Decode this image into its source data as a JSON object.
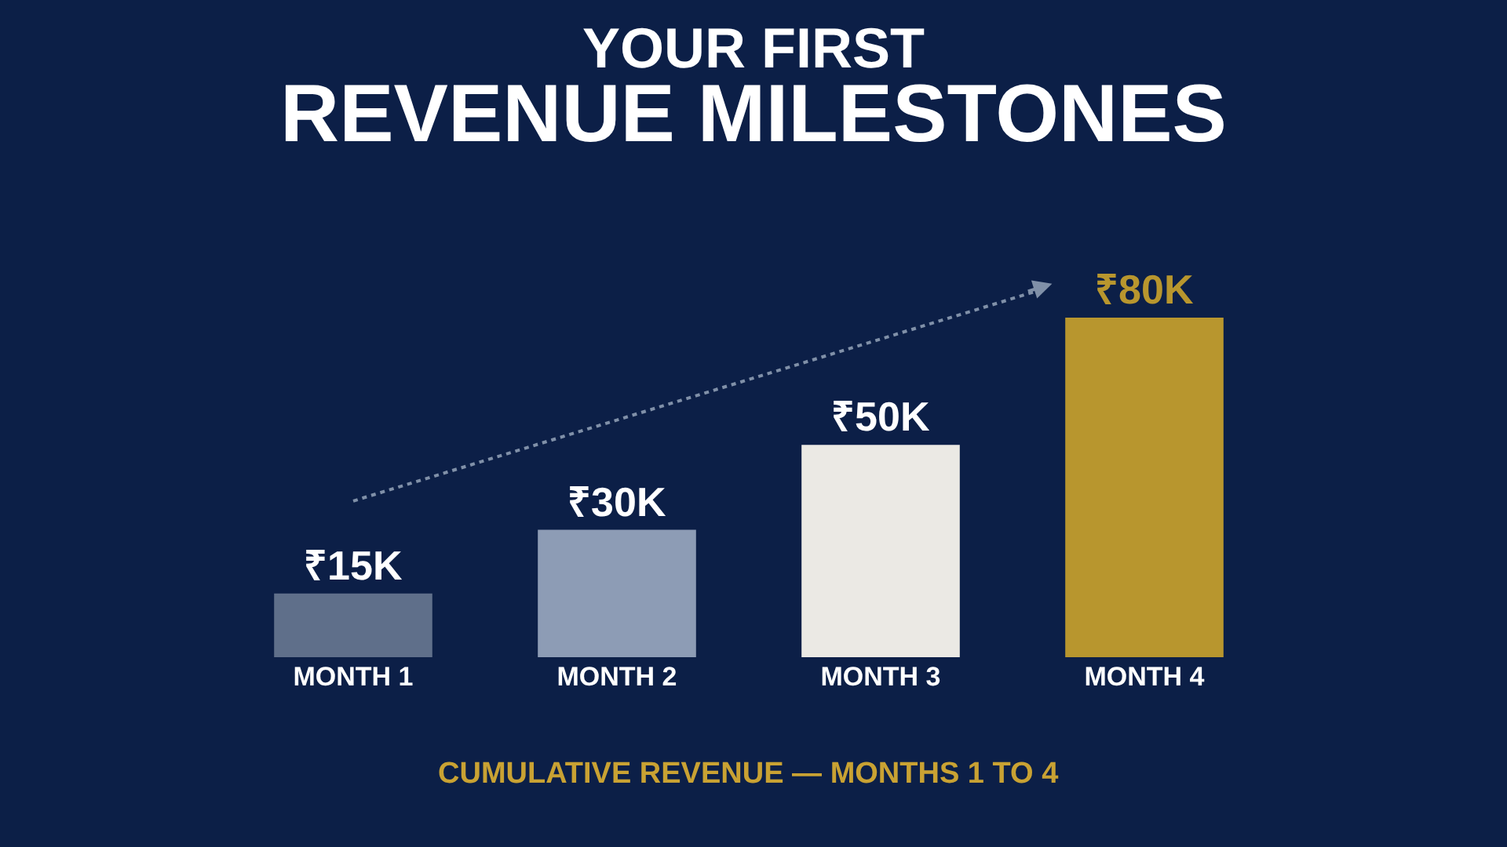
{
  "chart_data": {
    "type": "bar",
    "title": "YOUR FIRST\nREVENUE MILESTONES",
    "categories": [
      "MONTH 1",
      "MONTH 2",
      "MONTH 3",
      "MONTH 4"
    ],
    "values": [
      15,
      30,
      50,
      80
    ],
    "value_labels": [
      "₹15K",
      "₹30K",
      "₹50K",
      "₹80K"
    ],
    "colors": [
      "#5f6f8a",
      "#8d9cb5",
      "#ebe9e4",
      "#b8962e"
    ],
    "grid": false,
    "annotations": [
      "CUMULATIVE REVENUE — MONTHS 1 TO 4"
    ]
  }
}
